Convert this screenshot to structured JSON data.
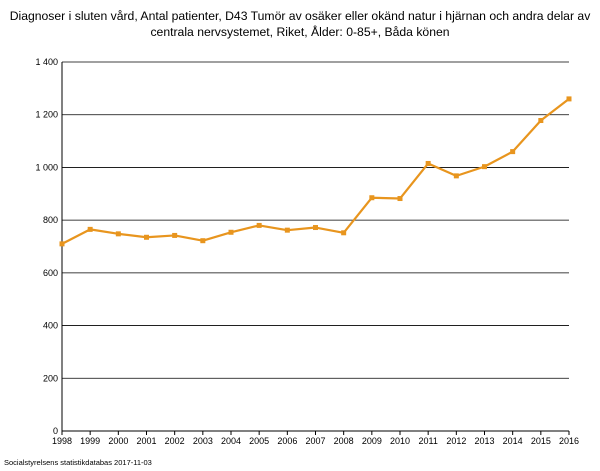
{
  "title_lines": [
    "Diagnoser i sluten vård, Antal patienter, D43 Tumör av osäker eller okänd natur i hjärnan och andra delar av",
    "centrala nervsystemet, Riket, Ålder: 0-85+, Båda könen"
  ],
  "source": "Socialstyrelsens statistikdatabas 2017-11-03",
  "colors": {
    "series": "#E8951E",
    "grid": "#000000",
    "axis": "#000000"
  },
  "chart_data": {
    "type": "line",
    "title": "Diagnoser i sluten vård, Antal patienter, D43 Tumör av osäker eller okänd natur i hjärnan och andra delar av centrala nervsystemet, Riket, Ålder: 0-85+, Båda könen",
    "xlabel": "",
    "ylabel": "",
    "grid": true,
    "legend": "none",
    "ylim": [
      0,
      1400
    ],
    "yticks": [
      0,
      200,
      400,
      600,
      800,
      1000,
      1200,
      1400
    ],
    "ytick_labels": [
      "0",
      "200",
      "400",
      "600",
      "800",
      "1 000",
      "1 200",
      "1 400"
    ],
    "categories": [
      "1998",
      "1999",
      "2000",
      "2001",
      "2002",
      "2003",
      "2004",
      "2005",
      "2006",
      "2007",
      "2008",
      "2009",
      "2010",
      "2011",
      "2012",
      "2013",
      "2014",
      "2015",
      "2016"
    ],
    "series": [
      {
        "values": [
          710,
          765,
          748,
          735,
          742,
          722,
          754,
          780,
          762,
          772,
          752,
          885,
          882,
          1015,
          968,
          1003,
          1060,
          1178,
          1260
        ]
      }
    ]
  }
}
